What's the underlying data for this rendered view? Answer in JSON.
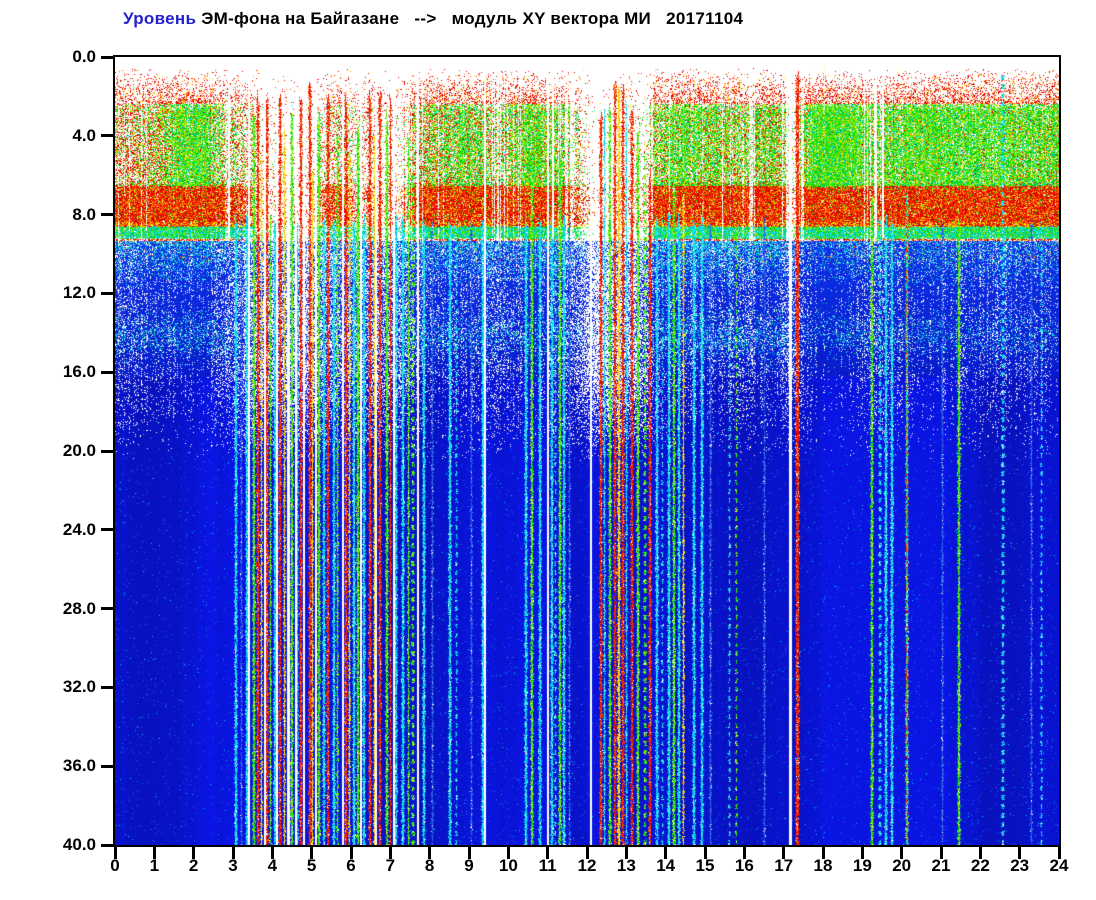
{
  "title": {
    "word1": "Уровень",
    "rest": " ЭМ-фона на Байгазане   -->   модуль XY вектора МИ   20171104",
    "highlight_color": "#2222cc"
  },
  "chart_data": {
    "type": "heatmap",
    "subtype": "spectrogram",
    "title": "Уровень ЭМ-фона на Байгазане --> модуль XY вектора МИ 20171104",
    "date": "20171104",
    "grid": false,
    "legend": "none",
    "x_axis": {
      "min": 0,
      "max": 24,
      "tick_step": 1,
      "unit": "hour of day",
      "tick_labels": [
        "0",
        "1",
        "2",
        "3",
        "4",
        "5",
        "6",
        "7",
        "8",
        "9",
        "10",
        "11",
        "12",
        "13",
        "14",
        "15",
        "16",
        "17",
        "18",
        "19",
        "20",
        "21",
        "22",
        "23",
        "24"
      ]
    },
    "y_axis": {
      "min": 0.0,
      "max": 40.0,
      "tick_step": 4.0,
      "direction": "down",
      "unit": "frequency",
      "tick_labels": [
        "0.0",
        "4.0",
        "8.0",
        "12.0",
        "16.0",
        "20.0",
        "24.0",
        "28.0",
        "32.0",
        "36.0",
        "40.0"
      ]
    },
    "colormap": {
      "name": "jet-on-white",
      "background": "#ffffff",
      "order": [
        "white",
        "blue",
        "cyan",
        "green",
        "yellow",
        "red"
      ]
    },
    "bands": [
      {
        "freq": [
          0.0,
          0.6
        ],
        "desc": "white margin, no signal"
      },
      {
        "freq": [
          0.6,
          2.4
        ],
        "desc": "sparse red speckle, density grows with depth"
      },
      {
        "freq": [
          2.4,
          6.8
        ],
        "desc": "green patches over red speckle, green dominance varies by hour"
      },
      {
        "freq": [
          6.4,
          8.7
        ],
        "desc": "dense red band with yellow/orange specks"
      },
      {
        "freq": [
          8.5,
          9.3
        ],
        "desc": "green to cyan transition line"
      },
      {
        "freq": [
          9.3,
          16.0
        ],
        "desc": "cyan speckle over blue fading to dark blue, secondary cyan band near 14"
      },
      {
        "freq": [
          16.0,
          40.0
        ],
        "desc": "uniform blue noise floor crossed by vertical interference stripes"
      }
    ],
    "activity_per_half_hour": [
      0.8,
      0.85,
      0.9,
      0.95,
      0.95,
      0.75,
      0.55,
      0.5,
      0.45,
      0.3,
      0.5,
      0.6,
      0.6,
      0.55,
      0.6,
      0.8,
      0.85,
      0.9,
      0.88,
      0.75,
      0.85,
      0.9,
      0.85,
      0.6,
      0.2,
      0.3,
      0.4,
      0.8,
      0.9,
      0.85,
      0.85,
      0.8,
      0.85,
      0.85,
      0.6,
      1.0,
      1.0,
      1.0,
      0.75,
      0.9,
      0.95,
      0.95,
      0.9,
      0.9,
      0.9,
      0.9,
      0.9,
      0.9
    ],
    "green_dominance_per_half_hour": [
      0.3,
      0.35,
      0.6,
      0.85,
      0.85,
      0.5,
      0.4,
      0.35,
      0.3,
      0.2,
      0.3,
      0.35,
      0.35,
      0.3,
      0.3,
      0.45,
      0.55,
      0.7,
      0.65,
      0.5,
      0.7,
      0.75,
      0.7,
      0.5,
      0.2,
      0.25,
      0.35,
      0.6,
      0.75,
      0.7,
      0.65,
      0.6,
      0.65,
      0.65,
      0.5,
      0.9,
      0.95,
      0.95,
      0.7,
      0.8,
      0.85,
      0.85,
      0.8,
      0.8,
      0.8,
      0.8,
      0.75,
      0.75
    ],
    "stripe_color_codes": {
      "C": "cyan",
      "G": "green",
      "Y": "yellow",
      "R": "red",
      "B": "faint blue",
      "M": "mixed red/green/cyan"
    },
    "stripes": [
      [
        3.05,
        2,
        "C",
        0,
        8.2
      ],
      [
        3.2,
        1,
        "B",
        0,
        8.2
      ],
      [
        3.32,
        2,
        "C",
        0,
        8.2
      ],
      [
        3.5,
        2,
        "G",
        0,
        3
      ],
      [
        3.62,
        2,
        "R",
        0,
        2
      ],
      [
        3.72,
        1,
        "Y",
        0,
        5
      ],
      [
        3.85,
        2,
        "R",
        0,
        2
      ],
      [
        3.95,
        1,
        "G",
        0,
        8.2
      ],
      [
        4.05,
        2,
        "C",
        0,
        8.2
      ],
      [
        4.18,
        2,
        "R",
        0,
        2
      ],
      [
        4.3,
        1,
        "Y",
        0,
        4
      ],
      [
        4.48,
        2,
        "G",
        0,
        3
      ],
      [
        4.62,
        1,
        "C",
        0,
        8.2
      ],
      [
        4.7,
        2,
        "R",
        0,
        2
      ],
      [
        4.92,
        2,
        "R",
        0,
        1.5
      ],
      [
        5.02,
        1,
        "Y",
        0,
        6
      ],
      [
        5.15,
        2,
        "G",
        0,
        3
      ],
      [
        5.28,
        2,
        "C",
        0,
        8.2
      ],
      [
        5.4,
        2,
        "R",
        0,
        2
      ],
      [
        5.55,
        2,
        "C",
        0,
        8.2
      ],
      [
        5.65,
        1,
        "G",
        0,
        4
      ],
      [
        5.85,
        2,
        "R",
        0,
        2
      ],
      [
        5.95,
        1,
        "Y",
        0,
        5
      ],
      [
        6.05,
        2,
        "C",
        0,
        8.2
      ],
      [
        6.15,
        2,
        "G",
        0,
        3.5
      ],
      [
        6.3,
        2,
        "C",
        0,
        8.2
      ],
      [
        6.45,
        2,
        "R",
        0,
        2
      ],
      [
        6.58,
        1,
        "Y",
        0,
        4
      ],
      [
        6.72,
        2,
        "R",
        0,
        2
      ],
      [
        6.88,
        2,
        "G",
        0,
        3
      ],
      [
        7.0,
        1,
        "R",
        0,
        2
      ],
      [
        7.12,
        2,
        "C",
        0,
        8.2
      ],
      [
        7.3,
        2,
        "C",
        0,
        8.2
      ],
      [
        7.45,
        1,
        "G",
        0,
        4
      ],
      [
        7.55,
        2,
        "G",
        1,
        6
      ],
      [
        7.82,
        2,
        "C",
        0,
        8.2
      ],
      [
        8.05,
        1,
        "B",
        0,
        8.2
      ],
      [
        8.5,
        2,
        "C",
        0,
        8.2
      ],
      [
        8.68,
        1,
        "C",
        1,
        8.2
      ],
      [
        9.05,
        1,
        "B",
        0,
        8.2
      ],
      [
        9.32,
        2,
        "C",
        0,
        8.2
      ],
      [
        10.42,
        2,
        "C",
        0,
        8.2
      ],
      [
        10.58,
        2,
        "G",
        0,
        5
      ],
      [
        10.78,
        2,
        "C",
        0,
        8.2
      ],
      [
        11.08,
        2,
        "C",
        0,
        8.2
      ],
      [
        11.18,
        1,
        "C",
        1,
        8.2
      ],
      [
        11.28,
        2,
        "G",
        0,
        5
      ],
      [
        11.4,
        2,
        "C",
        0,
        8.2
      ],
      [
        11.55,
        1,
        "B",
        0,
        8.2
      ],
      [
        12.32,
        2,
        "R",
        0,
        3
      ],
      [
        12.42,
        1,
        "C",
        0,
        3
      ],
      [
        12.55,
        2,
        "G",
        0,
        2.5
      ],
      [
        12.68,
        2,
        "R",
        0,
        1.5
      ],
      [
        12.78,
        2,
        "Y",
        0,
        1.5
      ],
      [
        12.9,
        2,
        "R",
        0,
        1.5
      ],
      [
        13.0,
        1,
        "C",
        0,
        2
      ],
      [
        13.12,
        2,
        "R",
        0,
        2.5
      ],
      [
        13.28,
        2,
        "G",
        0,
        3.5
      ],
      [
        13.45,
        2,
        "G",
        1,
        5
      ],
      [
        13.58,
        2,
        "R",
        0,
        6
      ],
      [
        13.75,
        2,
        "C",
        0,
        8.2
      ],
      [
        13.9,
        1,
        "C",
        1,
        8.2
      ],
      [
        14.05,
        2,
        "C",
        0,
        8.2
      ],
      [
        14.18,
        2,
        "G",
        0,
        6
      ],
      [
        14.32,
        2,
        "C",
        0,
        8.2
      ],
      [
        14.45,
        1,
        "Y",
        0,
        7
      ],
      [
        14.7,
        2,
        "C",
        0,
        8.2
      ],
      [
        14.9,
        2,
        "C",
        0,
        8.2
      ],
      [
        15.12,
        1,
        "B",
        0,
        8.2
      ],
      [
        15.6,
        1,
        "C",
        1,
        8.2
      ],
      [
        15.78,
        1,
        "G",
        1,
        8.2
      ],
      [
        16.5,
        1,
        "B",
        0,
        8.2
      ],
      [
        17.32,
        3,
        "R",
        0,
        0.8
      ],
      [
        19.22,
        2,
        "G",
        0,
        7
      ],
      [
        19.42,
        2,
        "C",
        1,
        8.2
      ],
      [
        19.58,
        2,
        "C",
        0,
        8.2
      ],
      [
        19.72,
        2,
        "C",
        0,
        8.2
      ],
      [
        20.12,
        2,
        "M",
        0,
        7
      ],
      [
        21.02,
        1,
        "B",
        0,
        8.2
      ],
      [
        21.42,
        2,
        "G",
        0,
        8.5
      ],
      [
        22.55,
        2,
        "C",
        1,
        0.8
      ],
      [
        23.3,
        1,
        "B",
        0,
        8.2
      ],
      [
        23.55,
        1,
        "C",
        1,
        8.2
      ]
    ],
    "dropout_gaps_full_height": [
      [
        3.38,
        2
      ],
      [
        3.78,
        2
      ],
      [
        4.1,
        2
      ],
      [
        4.38,
        3
      ],
      [
        4.57,
        2
      ],
      [
        4.78,
        2
      ],
      [
        5.08,
        2
      ],
      [
        5.78,
        2
      ],
      [
        6.22,
        2
      ],
      [
        6.62,
        2
      ],
      [
        7.06,
        2
      ],
      [
        7.68,
        2
      ],
      [
        9.38,
        2
      ],
      [
        10.98,
        2
      ],
      [
        12.08,
        2
      ],
      [
        17.14,
        3
      ]
    ],
    "dropout_gaps_top_only": [
      [
        2.87,
        2
      ],
      [
        11.12,
        2
      ],
      [
        12.2,
        2
      ],
      [
        12.62,
        1
      ],
      [
        13.02,
        1
      ],
      [
        19.32,
        2
      ],
      [
        19.5,
        2
      ]
    ],
    "palettes": {
      "C": [
        "#00d0f0",
        "#20e8f8",
        "#00b0f0",
        "#60f8f8",
        "#00e8d0"
      ],
      "G": [
        "#00e000",
        "#30f020",
        "#00c820",
        "#80f800",
        "#bef000"
      ],
      "Y": [
        "#f8e800",
        "#f8c800",
        "#ffa000",
        "#f8f850"
      ],
      "R": [
        "#f80000",
        "#e82000",
        "#ff4000",
        "#d80000",
        "#ff6000"
      ],
      "B": [
        "#2050e8",
        "#3068f0",
        "#1840d8",
        "#4080f0"
      ],
      "top_red": [
        "#f00000",
        "#e81800",
        "#ff3800",
        "#d80000",
        "#ff5c00",
        "#c80000"
      ],
      "top_yellow": [
        "#f8d800",
        "#ffb000",
        "#f8f000"
      ],
      "top_green": [
        "#00dc00",
        "#28e818",
        "#00c428",
        "#70f000",
        "#a8e800"
      ],
      "top_cyan": [
        "#00d8c0",
        "#20e8e0",
        "#00c0d8"
      ],
      "mid_cyan": [
        "#00bee8",
        "#18d8f0",
        "#10a0e0",
        "#40e8e8",
        "#28dca0"
      ],
      "mid_orange": "#ff7820",
      "base_blue_mid_top": "#0e32e8",
      "base_blue_mid_bot": "#081ccd",
      "base_blue_bottom": "#0914d4",
      "fleck_blue": "#1e5ff0",
      "fleck_cyan": "#00c8f0",
      "axis_color": "#000000"
    },
    "seed": 20171104
  }
}
